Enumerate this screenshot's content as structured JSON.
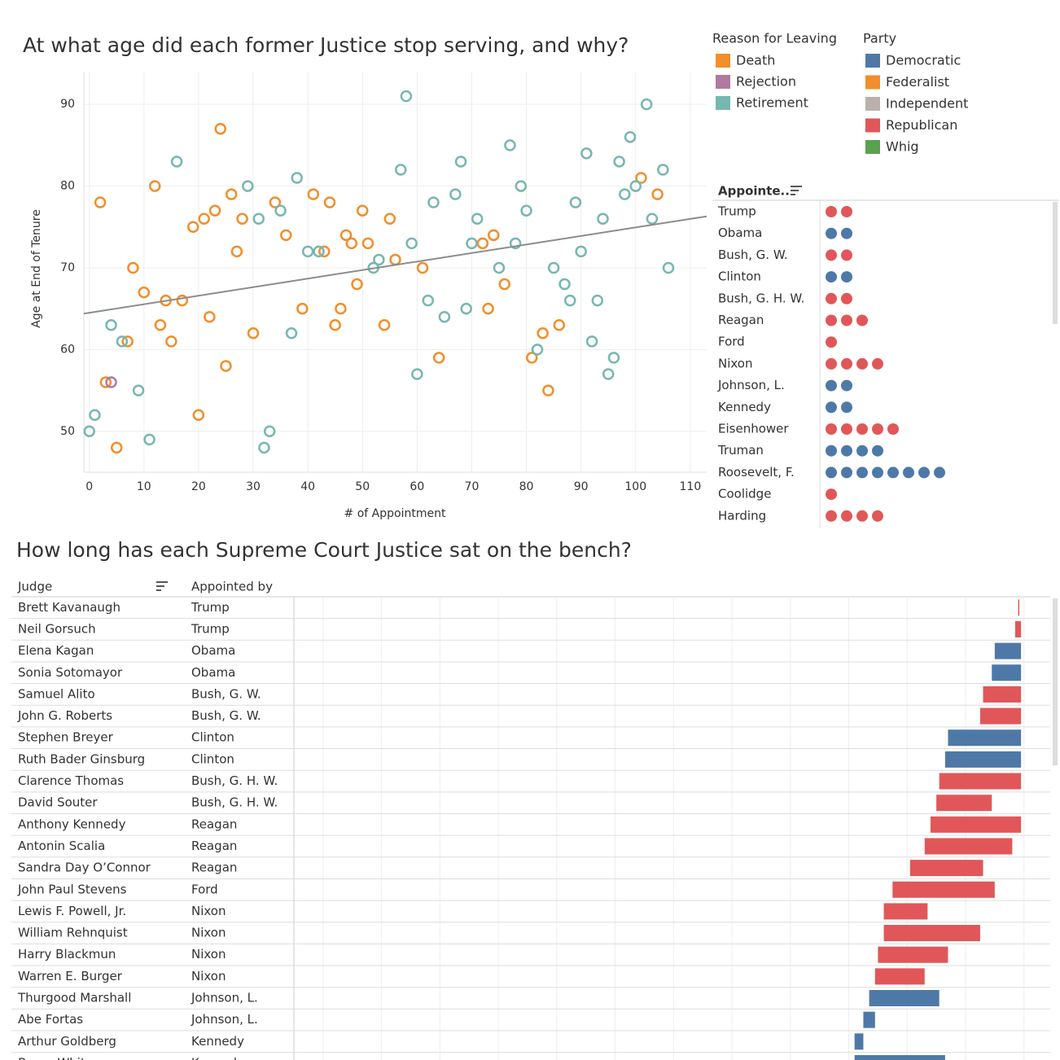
{
  "chart_data": [
    {
      "type": "scatter",
      "title": "At what age did each former Justice stop serving, and why?",
      "x_label": "# of Appointment",
      "y_label": "Age at End of Tenure",
      "xlim": [
        -1,
        113
      ],
      "ylim": [
        45,
        94
      ],
      "xticks": [
        0,
        10,
        20,
        30,
        40,
        50,
        60,
        70,
        80,
        90,
        100,
        110
      ],
      "yticks": [
        50,
        60,
        70,
        80,
        90
      ],
      "grid": true,
      "legend_title": "Reason for Leaving",
      "series": [
        {
          "name": "Death",
          "color": "#f28e2b",
          "x": [
            2,
            3,
            5,
            7,
            8,
            10,
            12,
            13,
            14,
            15,
            17,
            19,
            20,
            21,
            22,
            23,
            24,
            25,
            26,
            27,
            28,
            30,
            34,
            36,
            39,
            41,
            43,
            44,
            45,
            46,
            47,
            48,
            49,
            50,
            51,
            54,
            55,
            56,
            61,
            64,
            72,
            73,
            74,
            76,
            81,
            83,
            84,
            86,
            101,
            104
          ],
          "values": [
            78,
            56,
            48,
            61,
            70,
            67,
            80,
            63,
            66,
            61,
            66,
            75,
            52,
            76,
            64,
            77,
            87,
            58,
            79,
            72,
            76,
            62,
            78,
            74,
            65,
            79,
            72,
            78,
            63,
            65,
            74,
            73,
            68,
            77,
            73,
            63,
            76,
            71,
            70,
            59,
            73,
            65,
            74,
            68,
            59,
            62,
            55,
            63,
            81,
            79
          ]
        },
        {
          "name": "Rejection",
          "color": "#b07aa1",
          "x": [
            4
          ],
          "values": [
            56
          ]
        },
        {
          "name": "Retirement",
          "color": "#76b7b2",
          "x": [
            0,
            1,
            4,
            6,
            9,
            11,
            16,
            29,
            31,
            32,
            33,
            35,
            37,
            38,
            40,
            42,
            52,
            53,
            57,
            58,
            59,
            60,
            62,
            63,
            65,
            67,
            68,
            69,
            70,
            71,
            75,
            77,
            78,
            79,
            80,
            82,
            85,
            87,
            88,
            89,
            90,
            91,
            92,
            93,
            94,
            95,
            96,
            97,
            98,
            99,
            100,
            102,
            103,
            105,
            106
          ],
          "values": [
            50,
            52,
            63,
            61,
            55,
            49,
            83,
            80,
            76,
            48,
            50,
            77,
            62,
            81,
            72,
            72,
            70,
            71,
            82,
            91,
            73,
            57,
            66,
            78,
            64,
            79,
            83,
            65,
            73,
            76,
            70,
            85,
            73,
            80,
            77,
            60,
            70,
            68,
            66,
            78,
            72,
            84,
            61,
            66,
            76,
            57,
            59,
            83,
            79,
            86,
            80,
            90,
            76,
            82,
            70
          ]
        }
      ],
      "trendline": {
        "color": "#8c8c8c",
        "x": [
          -1,
          113
        ],
        "values": [
          64.4,
          76.3
        ]
      }
    },
    {
      "type": "dot",
      "legend_title": "Party",
      "legend": [
        {
          "name": "Democratic",
          "color": "#4e79a7"
        },
        {
          "name": "Federalist",
          "color": "#f28e2b"
        },
        {
          "name": "Independent",
          "color": "#bab0ac"
        },
        {
          "name": "Republican",
          "color": "#e15759"
        },
        {
          "name": "Whig",
          "color": "#59a14f"
        }
      ],
      "header": "Appointe..",
      "categories": [
        "Trump",
        "Obama",
        "Bush, G. W.",
        "Clinton",
        "Bush, G. H. W.",
        "Reagan",
        "Ford",
        "Nixon",
        "Johnson, L.",
        "Kennedy",
        "Eisenhower",
        "Truman",
        "Roosevelt, F.",
        "Coolidge",
        "Harding"
      ],
      "values": [
        2,
        2,
        2,
        2,
        2,
        3,
        1,
        4,
        2,
        2,
        5,
        4,
        8,
        1,
        4
      ],
      "colors": [
        "#e15759",
        "#4e79a7",
        "#e15759",
        "#4e79a7",
        "#e15759",
        "#e15759",
        "#e15759",
        "#e15759",
        "#4e79a7",
        "#4e79a7",
        "#e15759",
        "#4e79a7",
        "#4e79a7",
        "#e15759",
        "#e15759"
      ]
    },
    {
      "type": "gantt",
      "title": "How long has each Supreme Court Justice sat on the bench?",
      "columns": [
        "Judge",
        "Appointed by"
      ],
      "judges": [
        "Brett Kavanaugh",
        "Neil Gorsuch",
        "Elena Kagan",
        "Sonia Sotomayor",
        "Samuel Alito",
        "John G. Roberts",
        "Stephen Breyer",
        "Ruth Bader Ginsburg",
        "Clarence Thomas",
        "David Souter",
        "Anthony Kennedy",
        "Antonin Scalia",
        "Sandra Day O’Connor",
        "John Paul Stevens",
        "Lewis F. Powell, Jr.",
        "William Rehnquist",
        "Harry Blackmun",
        "Warren E. Burger",
        "Thurgood Marshall",
        "Abe Fortas",
        "Arthur Goldberg",
        "Byron White"
      ],
      "appointed_by": [
        "Trump",
        "Trump",
        "Obama",
        "Obama",
        "Bush, G. W.",
        "Bush, G. W.",
        "Clinton",
        "Clinton",
        "Bush, G. H. W.",
        "Bush, G. H. W.",
        "Reagan",
        "Reagan",
        "Reagan",
        "Ford",
        "Nixon",
        "Nixon",
        "Nixon",
        "Nixon",
        "Johnson, L.",
        "Johnson, L.",
        "Kennedy",
        "Kennedy"
      ],
      "start": [
        2018,
        2017,
        2010,
        2009,
        2006,
        2005,
        1994,
        1993,
        1991,
        1990,
        1988,
        1986,
        1981,
        1975,
        1972,
        1972,
        1970,
        1969,
        1967,
        1965,
        1962,
        1962
      ],
      "end": [
        2018.4,
        2019,
        2019,
        2019,
        2019,
        2019,
        2019,
        2019,
        2019,
        2009,
        2019,
        2016,
        2006,
        2010,
        1987,
        2005,
        1994,
        1986,
        1991,
        1969,
        1965,
        1993
      ],
      "colors": [
        "#e15759",
        "#e15759",
        "#4e79a7",
        "#4e79a7",
        "#e15759",
        "#e15759",
        "#4e79a7",
        "#4e79a7",
        "#e15759",
        "#e15759",
        "#e15759",
        "#e15759",
        "#e15759",
        "#e15759",
        "#e15759",
        "#e15759",
        "#e15759",
        "#e15759",
        "#4e79a7",
        "#4e79a7",
        "#4e79a7",
        "#4e79a7"
      ],
      "xlim": [
        1770,
        2029
      ],
      "gridlines": [
        1780,
        1800,
        1820,
        1840,
        1860,
        1880,
        1900,
        1920,
        1940,
        1960,
        1980,
        2000,
        2020
      ]
    }
  ]
}
